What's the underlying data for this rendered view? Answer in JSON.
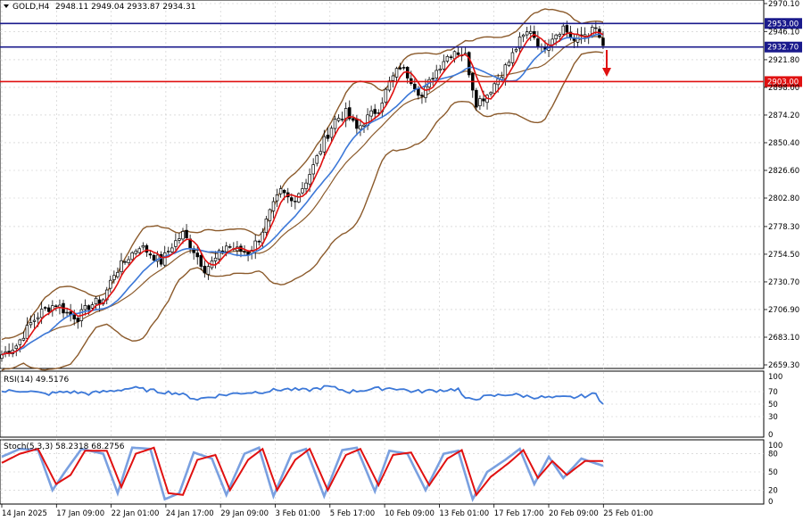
{
  "header": {
    "symbol": "GOLD,H4",
    "ohlc": "2948.11 2949.04 2933.87 2934.31"
  },
  "colors": {
    "candle": "#000000",
    "bollinger": "#8b5a2b",
    "ma_fast": "#e01010",
    "ma_slow": "#3c78d8",
    "level_blue": "#1a1a8c",
    "level_red": "#e01010",
    "rsi": "#3c78d8",
    "stoch_main": "#7aa0e0",
    "stoch_signal": "#e01010",
    "grid": "#c8c8c8"
  },
  "price_axis": {
    "ticks": [
      "2970.10",
      "2946.10",
      "2921.80",
      "2898.00",
      "2874.20",
      "2850.40",
      "2826.60",
      "2802.80",
      "2778.30",
      "2754.50",
      "2730.70",
      "2706.90",
      "2683.10",
      "2659.30"
    ],
    "range": [
      2659.3,
      2970.1
    ]
  },
  "levels": [
    {
      "label": "2953.00",
      "value": 2953.0,
      "color": "blue"
    },
    {
      "label": "2932.70",
      "value": 2932.7,
      "color": "blue"
    },
    {
      "label": "2903.00",
      "value": 2903.0,
      "color": "red"
    }
  ],
  "rsi_panel": {
    "title": "RSI(14) 49.5176",
    "ticks": [
      "100",
      "70",
      "50",
      "30",
      "0"
    ],
    "range": [
      0,
      100
    ]
  },
  "stoch_panel": {
    "title": "Stoch(5,3,3) 58.2318 68.2756",
    "ticks": [
      "100",
      "80",
      "50",
      "20",
      "0"
    ],
    "range": [
      0,
      100
    ]
  },
  "time_axis": [
    "14 Jan 2025",
    "17 Jan 09:00",
    "22 Jan 01:00",
    "24 Jan 17:00",
    "29 Jan 09:00",
    "3 Feb 01:00",
    "5 Feb 17:00",
    "10 Feb 09:00",
    "13 Feb 01:00",
    "17 Feb 17:00",
    "20 Feb 09:00",
    "25 Feb 01:00"
  ],
  "chart_data": {
    "type": "candlestick",
    "title": "GOLD,H4",
    "price_anchors": [
      [
        0,
        2668
      ],
      [
        4,
        2676
      ],
      [
        8,
        2695
      ],
      [
        11,
        2705
      ],
      [
        15,
        2712
      ],
      [
        18,
        2704
      ],
      [
        21,
        2700
      ],
      [
        24,
        2710
      ],
      [
        28,
        2716
      ],
      [
        31,
        2738
      ],
      [
        35,
        2752
      ],
      [
        38,
        2762
      ],
      [
        41,
        2755
      ],
      [
        44,
        2748
      ],
      [
        47,
        2762
      ],
      [
        50,
        2772
      ],
      [
        53,
        2758
      ],
      [
        56,
        2742
      ],
      [
        59,
        2750
      ],
      [
        62,
        2762
      ],
      [
        65,
        2758
      ],
      [
        68,
        2756
      ],
      [
        71,
        2768
      ],
      [
        74,
        2790
      ],
      [
        77,
        2808
      ],
      [
        80,
        2800
      ],
      [
        83,
        2812
      ],
      [
        86,
        2830
      ],
      [
        89,
        2852
      ],
      [
        92,
        2870
      ],
      [
        95,
        2876
      ],
      [
        98,
        2862
      ],
      [
        101,
        2872
      ],
      [
        104,
        2880
      ],
      [
        107,
        2902
      ],
      [
        110,
        2916
      ],
      [
        113,
        2905
      ],
      [
        116,
        2890
      ],
      [
        119,
        2908
      ],
      [
        122,
        2922
      ],
      [
        125,
        2930
      ],
      [
        128,
        2925
      ],
      [
        131,
        2885
      ],
      [
        134,
        2892
      ],
      [
        137,
        2906
      ],
      [
        140,
        2920
      ],
      [
        143,
        2938
      ],
      [
        146,
        2948
      ],
      [
        149,
        2930
      ],
      [
        152,
        2942
      ],
      [
        155,
        2950
      ],
      [
        158,
        2938
      ],
      [
        161,
        2944
      ],
      [
        164,
        2948
      ],
      [
        166,
        2934
      ]
    ],
    "rsi_anchors": [
      [
        0,
        70
      ],
      [
        6,
        72
      ],
      [
        12,
        66
      ],
      [
        18,
        70
      ],
      [
        24,
        67
      ],
      [
        30,
        71
      ],
      [
        36,
        76
      ],
      [
        42,
        71
      ],
      [
        48,
        68
      ],
      [
        54,
        58
      ],
      [
        60,
        64
      ],
      [
        66,
        68
      ],
      [
        72,
        70
      ],
      [
        78,
        74
      ],
      [
        84,
        72
      ],
      [
        90,
        78
      ],
      [
        96,
        70
      ],
      [
        102,
        74
      ],
      [
        108,
        76
      ],
      [
        114,
        70
      ],
      [
        120,
        72
      ],
      [
        126,
        74
      ],
      [
        128,
        57
      ],
      [
        134,
        62
      ],
      [
        140,
        66
      ],
      [
        146,
        62
      ],
      [
        152,
        60
      ],
      [
        158,
        61
      ],
      [
        164,
        66
      ],
      [
        166,
        50
      ]
    ],
    "stoch_main_anchors": [
      [
        0,
        75
      ],
      [
        5,
        88
      ],
      [
        10,
        86
      ],
      [
        14,
        20
      ],
      [
        18,
        55
      ],
      [
        22,
        88
      ],
      [
        28,
        80
      ],
      [
        32,
        15
      ],
      [
        36,
        90
      ],
      [
        41,
        88
      ],
      [
        45,
        5
      ],
      [
        49,
        15
      ],
      [
        53,
        82
      ],
      [
        58,
        72
      ],
      [
        62,
        12
      ],
      [
        67,
        80
      ],
      [
        71,
        90
      ],
      [
        75,
        10
      ],
      [
        80,
        80
      ],
      [
        84,
        88
      ],
      [
        89,
        10
      ],
      [
        94,
        86
      ],
      [
        98,
        90
      ],
      [
        103,
        18
      ],
      [
        107,
        85
      ],
      [
        112,
        80
      ],
      [
        117,
        20
      ],
      [
        122,
        80
      ],
      [
        126,
        85
      ],
      [
        130,
        5
      ],
      [
        134,
        50
      ],
      [
        139,
        70
      ],
      [
        143,
        88
      ],
      [
        147,
        30
      ],
      [
        151,
        75
      ],
      [
        155,
        40
      ],
      [
        160,
        72
      ],
      [
        166,
        60
      ]
    ],
    "stoch_signal_anchors": [
      [
        0,
        65
      ],
      [
        5,
        80
      ],
      [
        10,
        88
      ],
      [
        15,
        30
      ],
      [
        19,
        45
      ],
      [
        23,
        85
      ],
      [
        29,
        85
      ],
      [
        33,
        25
      ],
      [
        37,
        80
      ],
      [
        42,
        90
      ],
      [
        46,
        15
      ],
      [
        50,
        12
      ],
      [
        54,
        70
      ],
      [
        59,
        78
      ],
      [
        63,
        20
      ],
      [
        68,
        70
      ],
      [
        72,
        88
      ],
      [
        76,
        20
      ],
      [
        81,
        70
      ],
      [
        85,
        88
      ],
      [
        90,
        20
      ],
      [
        95,
        78
      ],
      [
        99,
        88
      ],
      [
        104,
        28
      ],
      [
        108,
        78
      ],
      [
        113,
        82
      ],
      [
        118,
        28
      ],
      [
        123,
        72
      ],
      [
        127,
        86
      ],
      [
        131,
        12
      ],
      [
        135,
        42
      ],
      [
        140,
        65
      ],
      [
        144,
        86
      ],
      [
        148,
        40
      ],
      [
        152,
        68
      ],
      [
        156,
        45
      ],
      [
        161,
        68
      ],
      [
        166,
        68
      ]
    ]
  }
}
